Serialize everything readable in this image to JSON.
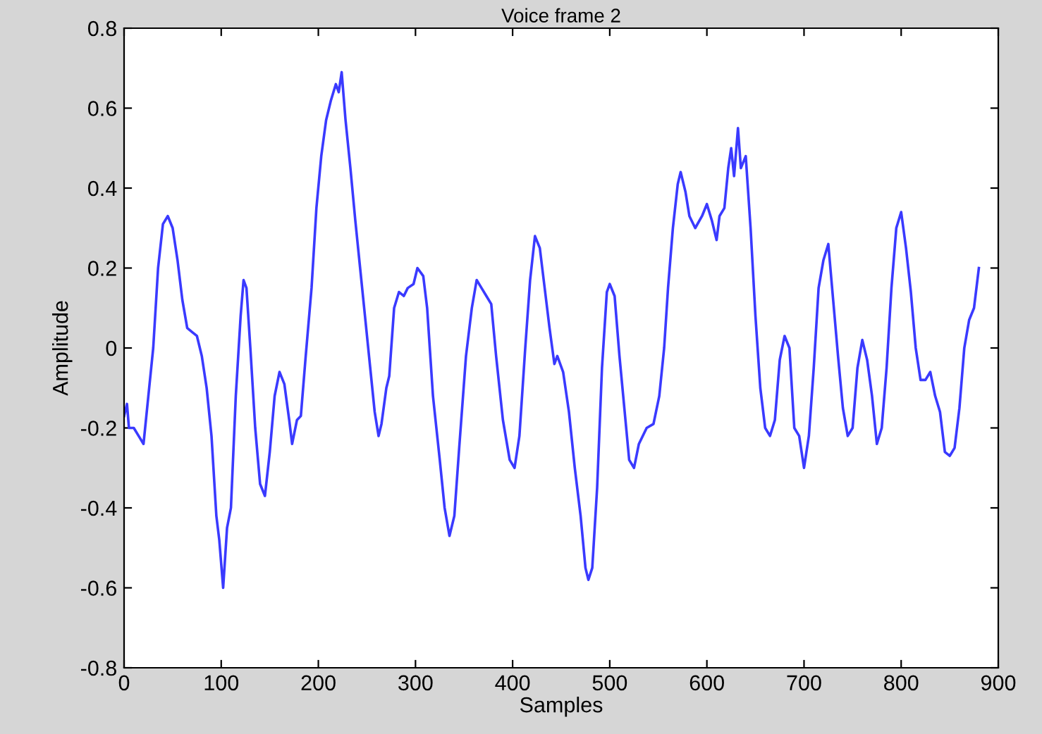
{
  "chart_data": {
    "type": "line",
    "title": "Voice frame 2",
    "xlabel": "Samples",
    "ylabel": "Amplitude",
    "xlim": [
      0,
      900
    ],
    "xticks": [
      0,
      100,
      200,
      300,
      400,
      500,
      600,
      700,
      800,
      900
    ],
    "ylim": [
      -0.8,
      0.8
    ],
    "yticks": [
      -0.8,
      -0.6,
      -0.4,
      -0.2,
      0,
      0.2,
      0.4,
      0.6,
      0.8
    ],
    "grid": false,
    "legend": false,
    "x": [
      0,
      3,
      5,
      10,
      15,
      20,
      25,
      30,
      35,
      40,
      45,
      50,
      55,
      60,
      65,
      70,
      75,
      80,
      85,
      90,
      95,
      98,
      102,
      106,
      110,
      115,
      120,
      123,
      126,
      130,
      135,
      140,
      145,
      150,
      155,
      160,
      165,
      170,
      173,
      178,
      182,
      187,
      193,
      198,
      203,
      208,
      213,
      218,
      221,
      224,
      228,
      233,
      238,
      243,
      248,
      253,
      258,
      262,
      265,
      270,
      273,
      278,
      283,
      288,
      292,
      298,
      302,
      308,
      312,
      318,
      325,
      330,
      335,
      340,
      345,
      352,
      358,
      363,
      368,
      373,
      378,
      383,
      390,
      397,
      402,
      407,
      413,
      418,
      423,
      428,
      433,
      438,
      443,
      446,
      452,
      458,
      464,
      470,
      475,
      478,
      482,
      487,
      492,
      497,
      500,
      505,
      510,
      515,
      520,
      525,
      530,
      538,
      545,
      551,
      556,
      560,
      565,
      570,
      573,
      578,
      582,
      588,
      595,
      600,
      605,
      610,
      613,
      618,
      622,
      625,
      628,
      632,
      635,
      640,
      645,
      650,
      655,
      660,
      665,
      670,
      675,
      680,
      685,
      690,
      695,
      700,
      705,
      710,
      715,
      720,
      725,
      730,
      735,
      740,
      745,
      750,
      755,
      760,
      765,
      770,
      775,
      780,
      785,
      790,
      795,
      800,
      805,
      810,
      815,
      820,
      825,
      830,
      835,
      840,
      845,
      850,
      855,
      860,
      865,
      870,
      875,
      880
    ],
    "series": [
      {
        "color": "#3a3aff",
        "values": [
          -0.17,
          -0.14,
          -0.2,
          -0.2,
          -0.22,
          -0.24,
          -0.12,
          0.0,
          0.2,
          0.31,
          0.33,
          0.3,
          0.22,
          0.12,
          0.05,
          0.04,
          0.03,
          -0.02,
          -0.1,
          -0.22,
          -0.42,
          -0.48,
          -0.6,
          -0.45,
          -0.4,
          -0.12,
          0.08,
          0.17,
          0.15,
          0.0,
          -0.2,
          -0.34,
          -0.37,
          -0.26,
          -0.12,
          -0.06,
          -0.09,
          -0.18,
          -0.24,
          -0.18,
          -0.17,
          -0.02,
          0.15,
          0.35,
          0.48,
          0.57,
          0.62,
          0.66,
          0.64,
          0.69,
          0.57,
          0.45,
          0.32,
          0.2,
          0.08,
          -0.04,
          -0.16,
          -0.22,
          -0.19,
          -0.1,
          -0.07,
          0.1,
          0.14,
          0.13,
          0.15,
          0.16,
          0.2,
          0.18,
          0.1,
          -0.12,
          -0.28,
          -0.4,
          -0.47,
          -0.42,
          -0.25,
          -0.02,
          0.1,
          0.17,
          0.15,
          0.13,
          0.11,
          -0.02,
          -0.18,
          -0.28,
          -0.3,
          -0.22,
          0.0,
          0.17,
          0.28,
          0.25,
          0.15,
          0.05,
          -0.04,
          -0.02,
          -0.06,
          -0.16,
          -0.3,
          -0.42,
          -0.55,
          -0.58,
          -0.55,
          -0.35,
          -0.05,
          0.14,
          0.16,
          0.13,
          -0.02,
          -0.15,
          -0.28,
          -0.3,
          -0.24,
          -0.2,
          -0.19,
          -0.12,
          0.0,
          0.15,
          0.3,
          0.41,
          0.44,
          0.39,
          0.33,
          0.3,
          0.33,
          0.36,
          0.32,
          0.27,
          0.33,
          0.35,
          0.45,
          0.5,
          0.43,
          0.55,
          0.45,
          0.48,
          0.3,
          0.08,
          -0.1,
          -0.2,
          -0.22,
          -0.18,
          -0.03,
          0.03,
          0.0,
          -0.2,
          -0.22,
          -0.3,
          -0.22,
          -0.05,
          0.15,
          0.22,
          0.26,
          0.12,
          -0.02,
          -0.15,
          -0.22,
          -0.2,
          -0.05,
          0.02,
          -0.03,
          -0.12,
          -0.24,
          -0.2,
          -0.05,
          0.15,
          0.3,
          0.34,
          0.25,
          0.14,
          0.0,
          -0.08,
          -0.08,
          -0.06,
          -0.12,
          -0.16,
          -0.26,
          -0.27,
          -0.25,
          -0.15,
          0.0,
          0.07,
          0.1,
          0.2
        ]
      }
    ]
  }
}
